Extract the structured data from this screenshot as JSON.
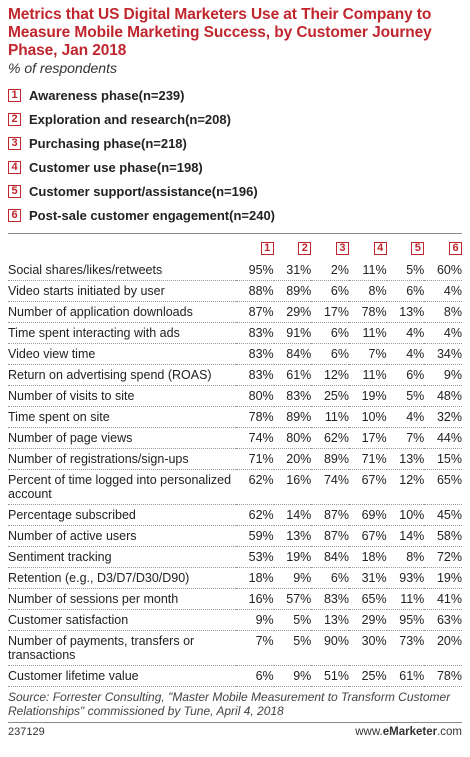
{
  "title": "Metrics that US Digital Marketers Use at Their Company to Measure Mobile Marketing Success, by Customer Journey Phase, Jan 2018",
  "subtitle": "% of respondents",
  "chart_data": {
    "type": "table",
    "columns": [
      {
        "key": "1",
        "name": "Awareness phase",
        "n": "(n=239)"
      },
      {
        "key": "2",
        "name": "Exploration and research",
        "n": "(n=208)"
      },
      {
        "key": "3",
        "name": "Purchasing phase",
        "n": "(n=218)"
      },
      {
        "key": "4",
        "name": "Customer use phase",
        "n": "(n=198)"
      },
      {
        "key": "5",
        "name": "Customer support/assistance",
        "n": "(n=196)"
      },
      {
        "key": "6",
        "name": "Post-sale customer engagement",
        "n": "(n=240)"
      }
    ],
    "rows": [
      {
        "label": "Social shares/likes/retweets",
        "values": [
          "95%",
          "31%",
          "2%",
          "11%",
          "5%",
          "60%"
        ]
      },
      {
        "label": "Video starts initiated by user",
        "values": [
          "88%",
          "89%",
          "6%",
          "8%",
          "6%",
          "4%"
        ]
      },
      {
        "label": "Number of application downloads",
        "values": [
          "87%",
          "29%",
          "17%",
          "78%",
          "13%",
          "8%"
        ]
      },
      {
        "label": "Time spent interacting with ads",
        "values": [
          "83%",
          "91%",
          "6%",
          "11%",
          "4%",
          "4%"
        ]
      },
      {
        "label": "Video view time",
        "values": [
          "83%",
          "84%",
          "6%",
          "7%",
          "4%",
          "34%"
        ]
      },
      {
        "label": "Return on advertising spend (ROAS)",
        "values": [
          "83%",
          "61%",
          "12%",
          "11%",
          "6%",
          "9%"
        ]
      },
      {
        "label": "Number of visits to site",
        "values": [
          "80%",
          "83%",
          "25%",
          "19%",
          "5%",
          "48%"
        ]
      },
      {
        "label": "Time spent on site",
        "values": [
          "78%",
          "89%",
          "11%",
          "10%",
          "4%",
          "32%"
        ]
      },
      {
        "label": "Number of page views",
        "values": [
          "74%",
          "80%",
          "62%",
          "17%",
          "7%",
          "44%"
        ]
      },
      {
        "label": "Number of registrations/sign-ups",
        "values": [
          "71%",
          "20%",
          "89%",
          "71%",
          "13%",
          "15%"
        ]
      },
      {
        "label": "Percent of time logged into personalized account",
        "values": [
          "62%",
          "16%",
          "74%",
          "67%",
          "12%",
          "65%"
        ],
        "tall": true
      },
      {
        "label": "Percentage subscribed",
        "values": [
          "62%",
          "14%",
          "87%",
          "69%",
          "10%",
          "45%"
        ]
      },
      {
        "label": "Number of active users",
        "values": [
          "59%",
          "13%",
          "87%",
          "67%",
          "14%",
          "58%"
        ]
      },
      {
        "label": "Sentiment tracking",
        "values": [
          "53%",
          "19%",
          "84%",
          "18%",
          "8%",
          "72%"
        ]
      },
      {
        "label": "Retention (e.g., D3/D7/D30/D90)",
        "values": [
          "18%",
          "9%",
          "6%",
          "31%",
          "93%",
          "19%"
        ]
      },
      {
        "label": "Number of sessions per month",
        "values": [
          "16%",
          "57%",
          "83%",
          "65%",
          "11%",
          "41%"
        ]
      },
      {
        "label": "Customer satisfaction",
        "values": [
          "9%",
          "5%",
          "13%",
          "29%",
          "95%",
          "63%"
        ]
      },
      {
        "label": "Number of payments, transfers or transactions",
        "values": [
          "7%",
          "5%",
          "90%",
          "30%",
          "73%",
          "20%"
        ],
        "tall": true
      },
      {
        "label": "Customer lifetime value",
        "values": [
          "6%",
          "9%",
          "51%",
          "25%",
          "61%",
          "78%"
        ]
      }
    ]
  },
  "source": "Source: Forrester Consulting, \"Master Mobile Measurement to Transform Customer Relationships\" commissioned by Tune, April 4, 2018",
  "footer": {
    "id": "237129",
    "brand_prefix": "www.",
    "brand_name": "eMarketer",
    "brand_suffix": ".com"
  },
  "colors": {
    "accent": "#c0262d",
    "text": "#222222",
    "rule": "#8a8a8a"
  }
}
